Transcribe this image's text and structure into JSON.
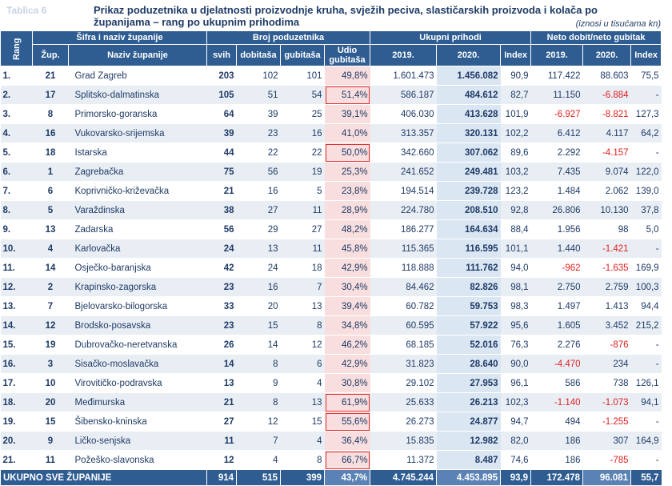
{
  "header": {
    "tag": "Tablica 6",
    "title": "Prikaz poduzetnika u djelatnosti proizvodnje kruha, svježih peciva, slastičarskih proizvoda i kolača po županijama – rang po ukupnim prihodima",
    "note": "(iznosi u tisućama kn)"
  },
  "table": {
    "group_headers": [
      "Rang",
      "Šifra i naziv županije",
      "Broj poduzetnika",
      "Ukupni prihodi",
      "Neto dobit/neto gubitak"
    ],
    "sub_headers": [
      "Žup.",
      "Naziv županije",
      "svih",
      "dobitaša",
      "gubitaša",
      "Udio gubitaša",
      "2019.",
      "2020.",
      "Index",
      "2019.",
      "2020.",
      "Index"
    ],
    "rows": [
      [
        "1.",
        "21",
        "Grad Zagreb",
        "203",
        "102",
        "101",
        "49,8%",
        "1.601.473",
        "1.456.082",
        "90,9",
        "117.422",
        "88.603",
        "75,5"
      ],
      [
        "2.",
        "17",
        "Splitsko-dalmatinska",
        "105",
        "51",
        "54",
        "51,4%",
        "586.187",
        "484.612",
        "82,7",
        "11.150",
        "-6.884",
        "-"
      ],
      [
        "3.",
        "8",
        "Primorsko-goranska",
        "64",
        "39",
        "25",
        "39,1%",
        "406.030",
        "413.628",
        "101,9",
        "-6.927",
        "-8.821",
        "127,3"
      ],
      [
        "4.",
        "16",
        "Vukovarsko-srijemska",
        "39",
        "23",
        "16",
        "41,0%",
        "313.357",
        "320.131",
        "102,2",
        "6.412",
        "4.117",
        "64,2"
      ],
      [
        "5.",
        "18",
        "Istarska",
        "44",
        "22",
        "22",
        "50,0%",
        "342.660",
        "307.062",
        "89,6",
        "2.292",
        "-4.157",
        "-"
      ],
      [
        "6.",
        "1",
        "Zagrebačka",
        "75",
        "56",
        "19",
        "25,3%",
        "241.652",
        "249.481",
        "103,2",
        "7.435",
        "9.074",
        "122,0"
      ],
      [
        "7.",
        "6",
        "Koprivničko-križevačka",
        "21",
        "16",
        "5",
        "23,8%",
        "194.514",
        "239.728",
        "123,2",
        "1.484",
        "2.062",
        "139,0"
      ],
      [
        "8.",
        "5",
        "Varaždinska",
        "38",
        "27",
        "11",
        "28,9%",
        "224.780",
        "208.510",
        "92,8",
        "26.806",
        "10.130",
        "37,8"
      ],
      [
        "9.",
        "13",
        "Zadarska",
        "56",
        "29",
        "27",
        "48,2%",
        "186.277",
        "164.634",
        "88,4",
        "1.956",
        "98",
        "5,0"
      ],
      [
        "10.",
        "4",
        "Karlovačka",
        "24",
        "13",
        "11",
        "45,8%",
        "115.365",
        "116.595",
        "101,1",
        "1.440",
        "-1.421",
        "-"
      ],
      [
        "11.",
        "14",
        "Osječko-baranjska",
        "42",
        "24",
        "18",
        "42,9%",
        "118.888",
        "111.762",
        "94,0",
        "-962",
        "-1.635",
        "169,9"
      ],
      [
        "12.",
        "2",
        "Krapinsko-zagorska",
        "23",
        "16",
        "7",
        "30,4%",
        "84.462",
        "82.826",
        "98,1",
        "2.750",
        "2.759",
        "100,3"
      ],
      [
        "13.",
        "7",
        "Bjelovarsko-bilogorska",
        "33",
        "20",
        "13",
        "39,4%",
        "60.782",
        "59.753",
        "98,3",
        "1.497",
        "1.413",
        "94,4"
      ],
      [
        "14.",
        "12",
        "Brodsko-posavska",
        "23",
        "15",
        "8",
        "34,8%",
        "60.595",
        "57.922",
        "95,6",
        "1.605",
        "3.452",
        "215,2"
      ],
      [
        "15.",
        "19",
        "Dubrovačko-neretvanska",
        "26",
        "14",
        "12",
        "46,2%",
        "68.185",
        "52.016",
        "76,3",
        "2.276",
        "-876",
        "-"
      ],
      [
        "16.",
        "3",
        "Sisačko-moslavačka",
        "14",
        "8",
        "6",
        "42,9%",
        "31.823",
        "28.640",
        "90,0",
        "-4.470",
        "234",
        "-"
      ],
      [
        "17.",
        "10",
        "Virovitičko-podravska",
        "13",
        "9",
        "4",
        "30,8%",
        "29.102",
        "27.953",
        "96,1",
        "586",
        "738",
        "126,1"
      ],
      [
        "18.",
        "20",
        "Međimurska",
        "21",
        "8",
        "13",
        "61,9%",
        "25.633",
        "26.213",
        "102,3",
        "-1.140",
        "-1.073",
        "94,1"
      ],
      [
        "19.",
        "15",
        "Šibensko-kninska",
        "27",
        "12",
        "15",
        "55,6%",
        "26.273",
        "24.877",
        "94,7",
        "494",
        "-1.255",
        "-"
      ],
      [
        "20.",
        "9",
        "Ličko-senjska",
        "11",
        "7",
        "4",
        "36,4%",
        "15.835",
        "12.982",
        "82,0",
        "186",
        "307",
        "164,9"
      ],
      [
        "21.",
        "11",
        "Požeško-slavonska",
        "12",
        "4",
        "8",
        "66,7%",
        "11.372",
        "8.487",
        "74,6",
        "186",
        "-785",
        "-"
      ]
    ],
    "total": [
      "UKUPNO SVE ŽUPANIJE",
      "914",
      "515",
      "399",
      "43,7%",
      "4.745.244",
      "4.453.895",
      "93,9",
      "172.478",
      "96.081",
      "55,7"
    ]
  }
}
